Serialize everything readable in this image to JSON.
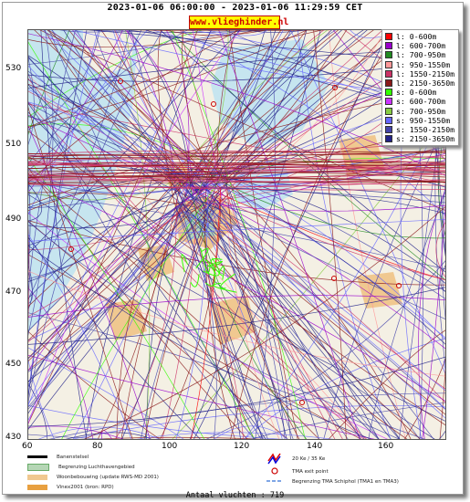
{
  "title": "2023-01-06 06:00:00 - 2023-01-06 11:29:59 CET",
  "site_label": "www.vlieghinder.nl",
  "y_axis_labels": [
    "530",
    "510",
    "490",
    "470",
    "450",
    "430"
  ],
  "x_axis_labels": [
    "60",
    "80",
    "100",
    "120",
    "140",
    "160"
  ],
  "legend": [
    {
      "label": "l: 0-600m",
      "color": "#ff0000"
    },
    {
      "label": "l: 600-700m",
      "color": "#9900cc"
    },
    {
      "label": "l: 700-950m",
      "color": "#228b22"
    },
    {
      "label": "l: 950-1550m",
      "color": "#ff9999"
    },
    {
      "label": "l: 1550-2150m",
      "color": "#cc3366"
    },
    {
      "label": "l: 2150-3650m",
      "color": "#8b1a1a"
    },
    {
      "label": "s: 0-600m",
      "color": "#33ff00"
    },
    {
      "label": "s: 600-700m",
      "color": "#cc33ff"
    },
    {
      "label": "s: 700-950m",
      "color": "#88cc44"
    },
    {
      "label": "s: 950-1550m",
      "color": "#6666ff"
    },
    {
      "label": "s: 1550-2150m",
      "color": "#4444aa"
    },
    {
      "label": "s: 2150-3650m",
      "color": "#222288"
    }
  ],
  "map_legend": [
    {
      "label": "Banenstelsel",
      "color": "#000000"
    },
    {
      "label": "Begrenzing Luchthavengebied",
      "color": "#b5d6b5"
    },
    {
      "label": "Woonbebouwing (update RWS-MD 2001)",
      "color": "#f0c890"
    },
    {
      "label": "Vinex2001 (bron: RPD)",
      "color": "#e8a040"
    }
  ],
  "map_legend_right": [
    {
      "icon": "noise-zone-icon",
      "label": "20 Ke / 35 Ke"
    },
    {
      "icon": "tma-exit-point-icon",
      "label": "TMA exit point"
    },
    {
      "icon": "tma-boundary-icon",
      "label": "Begrenzing TMA Schiphol  (TMA1 en TMA3)"
    }
  ],
  "flight_count": "Antaal vluchten : 719",
  "colors": {
    "water": "#c6e5ef",
    "land": "#f4f0e4",
    "urban": "#f0c890",
    "frame_red": "#cc0000",
    "highlight": "#ffff00"
  }
}
